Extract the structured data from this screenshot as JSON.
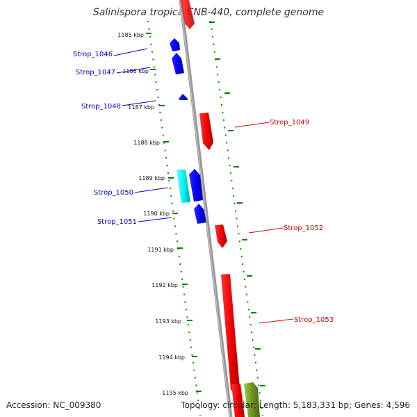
{
  "title": "Salinispora tropica CNB-440, complete genome",
  "footer": {
    "accession": "Accession: NC_009380",
    "info": "Topology: circular; Length: 5,183,331 bp; Genes: 4,596"
  },
  "ticks": [
    "1185 kbp",
    "1186 kbp",
    "1187 kbp",
    "1188 kbp",
    "1189 kbp",
    "1190 kbp",
    "1191 kbp",
    "1192 kbp",
    "1193 kbp",
    "1194 kbp",
    "1195 kbp"
  ],
  "genes": {
    "left": [
      {
        "label": "Strop_1046",
        "color": "#0000cc"
      },
      {
        "label": "Strop_1047",
        "color": "#0000cc"
      },
      {
        "label": "Strop_1048",
        "color": "#0000cc"
      },
      {
        "label": "Strop_1050",
        "color": "#0000cc"
      },
      {
        "label": "Strop_1051",
        "color": "#0000cc"
      }
    ],
    "right": [
      {
        "label": "Strop_1049",
        "color": "#cc0000"
      },
      {
        "label": "Strop_1052",
        "color": "#cc0000"
      },
      {
        "label": "Strop_1053",
        "color": "#cc0000"
      }
    ]
  },
  "colors": {
    "forward_cds": "#ff0000",
    "reverse_cds": "#0000ff",
    "special_cds": "#00ffff",
    "other_feature": "#6b8e23",
    "backbone": "#888888",
    "gc_track": "#008000"
  }
}
